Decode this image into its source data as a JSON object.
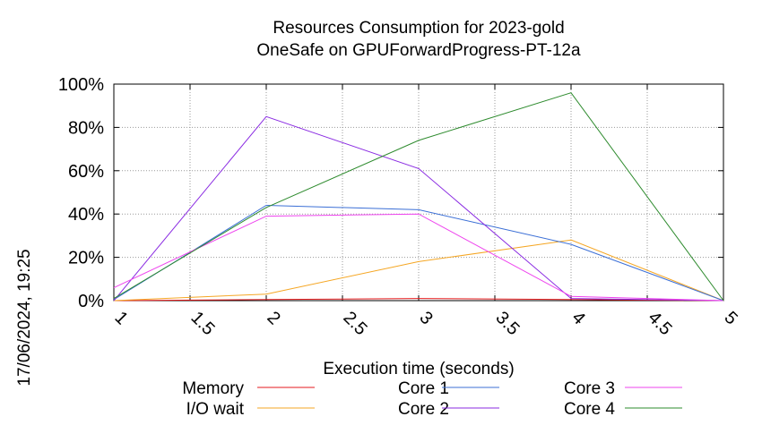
{
  "chart_data": {
    "type": "line",
    "title": "Resources Consumption for 2023-gold",
    "subtitle": "OneSafe on GPUForwardProgress-PT-12a",
    "xlabel": "Execution time (seconds)",
    "ylabel": "",
    "timestamp": "17/06/2024, 19:25",
    "xlim": [
      1,
      5
    ],
    "ylim": [
      0,
      100
    ],
    "x_ticks": [
      "1",
      "1.5",
      "2",
      "2.5",
      "3",
      "3.5",
      "4",
      "4.5",
      "5"
    ],
    "y_ticks": [
      "0%",
      "20%",
      "40%",
      "60%",
      "80%",
      "100%"
    ],
    "grid": true,
    "legend_position": "bottom",
    "series": [
      {
        "name": "Memory",
        "color": "#e41a1c",
        "x": [
          1,
          2,
          3,
          4,
          5
        ],
        "values": [
          0,
          0.5,
          1,
          0.5,
          0
        ]
      },
      {
        "name": "I/O wait",
        "color": "#f5a623",
        "x": [
          1,
          2,
          3,
          4,
          5
        ],
        "values": [
          0,
          3,
          18,
          28,
          0
        ]
      },
      {
        "name": "Core 1",
        "color": "#3b6fd6",
        "x": [
          1,
          2,
          3,
          4,
          5
        ],
        "values": [
          0.5,
          44,
          42,
          26,
          0
        ]
      },
      {
        "name": "Core 2",
        "color": "#8a2be2",
        "x": [
          1,
          2,
          3,
          4,
          5
        ],
        "values": [
          0,
          85,
          61,
          1,
          0
        ]
      },
      {
        "name": "Core 3",
        "color": "#ee44ee",
        "x": [
          1,
          2,
          3,
          4,
          5
        ],
        "values": [
          6,
          39,
          40,
          2,
          0
        ]
      },
      {
        "name": "Core 4",
        "color": "#2e8b2e",
        "x": [
          1,
          2,
          3,
          4,
          5
        ],
        "values": [
          1,
          43,
          74,
          96,
          0
        ]
      }
    ]
  }
}
